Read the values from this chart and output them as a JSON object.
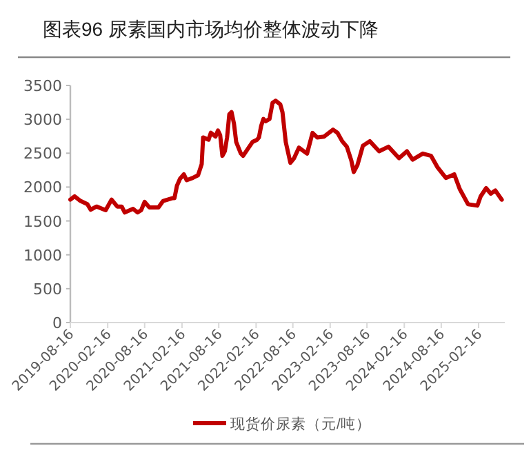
{
  "chart_data": {
    "type": "line",
    "title": "图表96 尿素国内市场均价整体波动下降",
    "series": [
      {
        "name": "现货价尿素（元/吨）",
        "color": "#c00000",
        "x": [
          "2019-08-16",
          "2019-09-06",
          "2019-10-05",
          "2019-11-08",
          "2019-11-24",
          "2019-12-23",
          "2020-02-06",
          "2020-03-06",
          "2020-04-03",
          "2020-04-25",
          "2020-05-10",
          "2020-06-20",
          "2020-07-12",
          "2020-07-30",
          "2020-08-16",
          "2020-09-08",
          "2020-10-23",
          "2020-11-15",
          "2020-12-30",
          "2021-01-10",
          "2021-01-22",
          "2021-02-06",
          "2021-02-25",
          "2021-03-11",
          "2021-04-10",
          "2021-05-06",
          "2021-05-24",
          "2021-05-31",
          "2021-06-27",
          "2021-07-08",
          "2021-07-31",
          "2021-08-12",
          "2021-08-23",
          "2021-09-03",
          "2021-09-15",
          "2021-09-26",
          "2021-10-07",
          "2021-10-18",
          "2021-10-30",
          "2021-11-10",
          "2021-12-03",
          "2021-12-14",
          "2022-01-06",
          "2022-01-29",
          "2022-02-21",
          "2022-03-02",
          "2022-03-13",
          "2022-03-24",
          "2022-04-04",
          "2022-04-23",
          "2022-05-08",
          "2022-05-23",
          "2022-06-15",
          "2022-06-26",
          "2022-07-12",
          "2022-08-04",
          "2022-08-22",
          "2022-09-15",
          "2022-10-25",
          "2022-11-21",
          "2022-12-14",
          "2023-01-17",
          "2023-03-02",
          "2023-03-24",
          "2023-04-16",
          "2023-05-09",
          "2023-05-31",
          "2023-06-12",
          "2023-06-30",
          "2023-07-27",
          "2023-08-30",
          "2023-10-15",
          "2023-11-30",
          "2024-01-21",
          "2024-02-29",
          "2024-03-28",
          "2024-05-17",
          "2024-06-27",
          "2024-07-29",
          "2024-09-08",
          "2024-10-19",
          "2024-11-15",
          "2024-12-26",
          "2025-02-10",
          "2025-02-26",
          "2025-03-25",
          "2025-04-17",
          "2025-05-09",
          "2025-06-10"
        ],
        "values": [
          1815,
          1863,
          1795,
          1747,
          1666,
          1713,
          1659,
          1815,
          1713,
          1713,
          1625,
          1679,
          1625,
          1659,
          1781,
          1700,
          1700,
          1795,
          1836,
          1836,
          2019,
          2121,
          2189,
          2101,
          2135,
          2175,
          2339,
          2733,
          2699,
          2801,
          2746,
          2835,
          2767,
          2461,
          2529,
          2733,
          3073,
          3107,
          2937,
          2665,
          2495,
          2461,
          2563,
          2665,
          2699,
          2733,
          2903,
          3005,
          2971,
          3005,
          3243,
          3275,
          3221,
          3105,
          2664,
          2358,
          2426,
          2582,
          2494,
          2800,
          2732,
          2745,
          2847,
          2800,
          2677,
          2596,
          2392,
          2222,
          2324,
          2609,
          2677,
          2528,
          2596,
          2426,
          2528,
          2405,
          2494,
          2460,
          2290,
          2134,
          2188,
          1971,
          1746,
          1726,
          1862,
          1984,
          1903,
          1950,
          1814
        ]
      }
    ],
    "xlim": [
      "2019-08-16",
      "2025-06-25"
    ],
    "xticks": [
      "2019-08-16",
      "2020-02-16",
      "2020-08-16",
      "2021-02-16",
      "2021-08-16",
      "2022-02-16",
      "2022-08-16",
      "2023-02-16",
      "2023-08-16",
      "2024-02-16",
      "2024-08-16",
      "2025-02-16"
    ],
    "ylim": [
      0,
      3500
    ],
    "yticks": [
      0,
      500,
      1000,
      1500,
      2000,
      2500,
      3000,
      3500
    ],
    "grid": false,
    "legend": "bottom",
    "marker": "none",
    "line_style": "solid"
  }
}
